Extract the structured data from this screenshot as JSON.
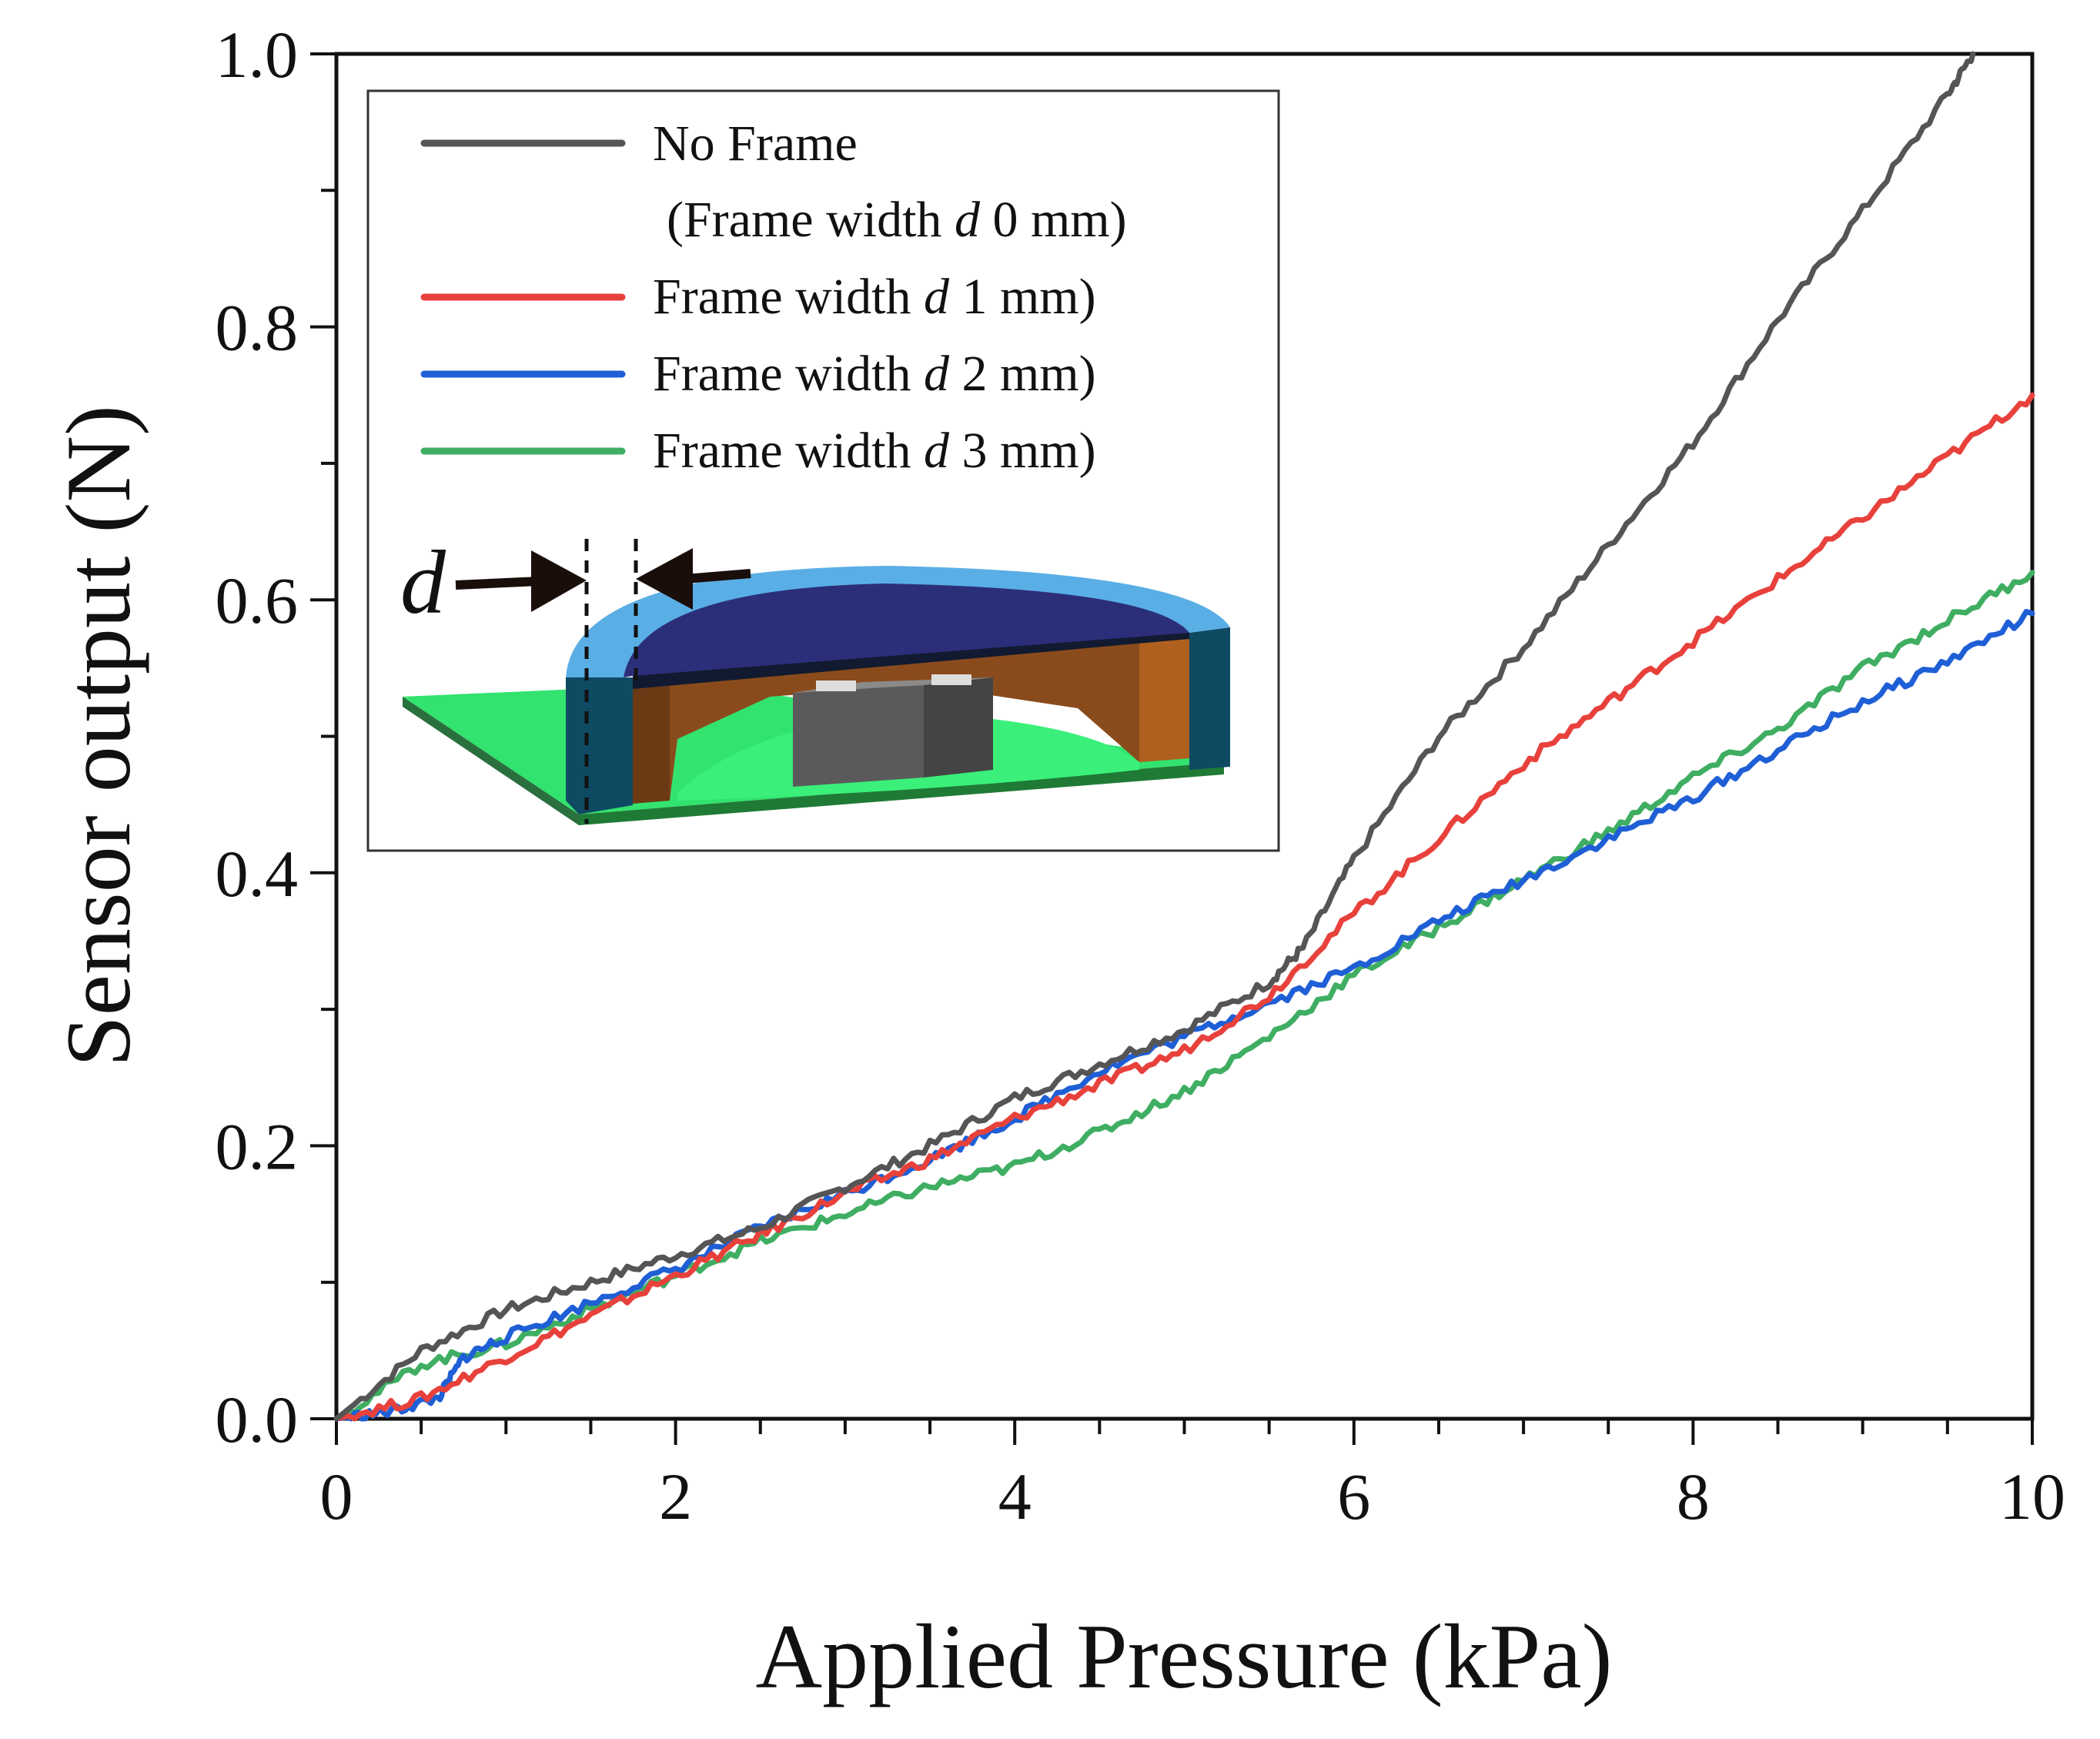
{
  "chart_data": {
    "type": "line",
    "title": "",
    "xlabel": "Applied Pressure (kPa)",
    "ylabel": "Sensor output (N)",
    "xlim": [
      0,
      10
    ],
    "ylim": [
      0,
      1.0
    ],
    "x_ticks": [
      0,
      2,
      4,
      6,
      8,
      10
    ],
    "x_tick_labels": [
      "0",
      "2",
      "4",
      "6",
      "8",
      "10"
    ],
    "y_ticks": [
      0.0,
      0.2,
      0.4,
      0.6,
      0.8,
      1.0
    ],
    "y_tick_labels": [
      "0.0",
      "0.2",
      "0.4",
      "0.6",
      "0.8",
      "1.0"
    ],
    "grid": false,
    "legend_position": "top-left (inset)",
    "legend": {
      "no_frame_line1": "No Frame",
      "no_frame_line2_prefix": "(Frame width ",
      "no_frame_line2_var": "d",
      "no_frame_line2_suffix": " 0 mm)",
      "entry_prefix": "Frame width ",
      "entry_var": "d",
      "entry_suffixes": [
        " 1 mm)",
        " 2 mm)",
        " 3 mm)"
      ]
    },
    "inset_label": "d",
    "series": [
      {
        "name": "No Frame (Frame width d 0 mm)",
        "color": "#555555",
        "x": [
          0,
          0.5,
          1.0,
          1.5,
          2.0,
          2.5,
          3.0,
          3.5,
          4.0,
          4.5,
          5.0,
          5.5,
          5.7,
          6.0,
          6.5,
          7.0,
          7.5,
          8.0,
          8.5,
          9.0,
          9.5,
          9.65
        ],
        "y": [
          0,
          0.05,
          0.08,
          0.1,
          0.12,
          0.14,
          0.17,
          0.2,
          0.235,
          0.26,
          0.285,
          0.32,
          0.345,
          0.41,
          0.5,
          0.565,
          0.64,
          0.715,
          0.805,
          0.885,
          0.97,
          1.0
        ]
      },
      {
        "name": "Frame width d 1 mm)",
        "color": "#e8413c",
        "x": [
          0,
          0.5,
          1.0,
          1.5,
          2.0,
          2.5,
          3.0,
          3.5,
          4.0,
          4.5,
          5.0,
          5.5,
          6.0,
          6.5,
          7.0,
          7.5,
          8.0,
          8.5,
          9.0,
          9.5,
          10.0
        ],
        "y": [
          0,
          0.015,
          0.045,
          0.075,
          0.105,
          0.135,
          0.165,
          0.19,
          0.22,
          0.245,
          0.27,
          0.31,
          0.37,
          0.425,
          0.48,
          0.525,
          0.57,
          0.615,
          0.66,
          0.705,
          0.75
        ]
      },
      {
        "name": "Frame width d 2 mm)",
        "color": "#1f5fd6",
        "x": [
          0,
          0.3,
          0.6,
          0.75,
          1.0,
          1.5,
          2.0,
          2.5,
          3.0,
          3.5,
          4.0,
          4.5,
          5.0,
          5.5,
          6.0,
          6.5,
          7.0,
          7.5,
          8.0,
          8.5,
          9.0,
          9.5,
          10.0
        ],
        "y": [
          0,
          0.005,
          0.015,
          0.045,
          0.06,
          0.085,
          0.11,
          0.14,
          0.165,
          0.19,
          0.22,
          0.255,
          0.28,
          0.305,
          0.33,
          0.365,
          0.395,
          0.425,
          0.455,
          0.49,
          0.525,
          0.555,
          0.59
        ]
      },
      {
        "name": "Frame width d 3 mm)",
        "color": "#3fae62",
        "x": [
          0,
          0.5,
          1.0,
          1.5,
          2.0,
          2.5,
          3.0,
          3.5,
          4.0,
          4.5,
          5.0,
          5.5,
          6.0,
          6.5,
          7.0,
          7.5,
          8.0,
          8.5,
          9.0,
          9.5,
          10.0
        ],
        "y": [
          0,
          0.04,
          0.055,
          0.08,
          0.105,
          0.13,
          0.15,
          0.17,
          0.185,
          0.21,
          0.24,
          0.28,
          0.325,
          0.36,
          0.395,
          0.43,
          0.47,
          0.505,
          0.55,
          0.585,
          0.62
        ]
      }
    ]
  }
}
